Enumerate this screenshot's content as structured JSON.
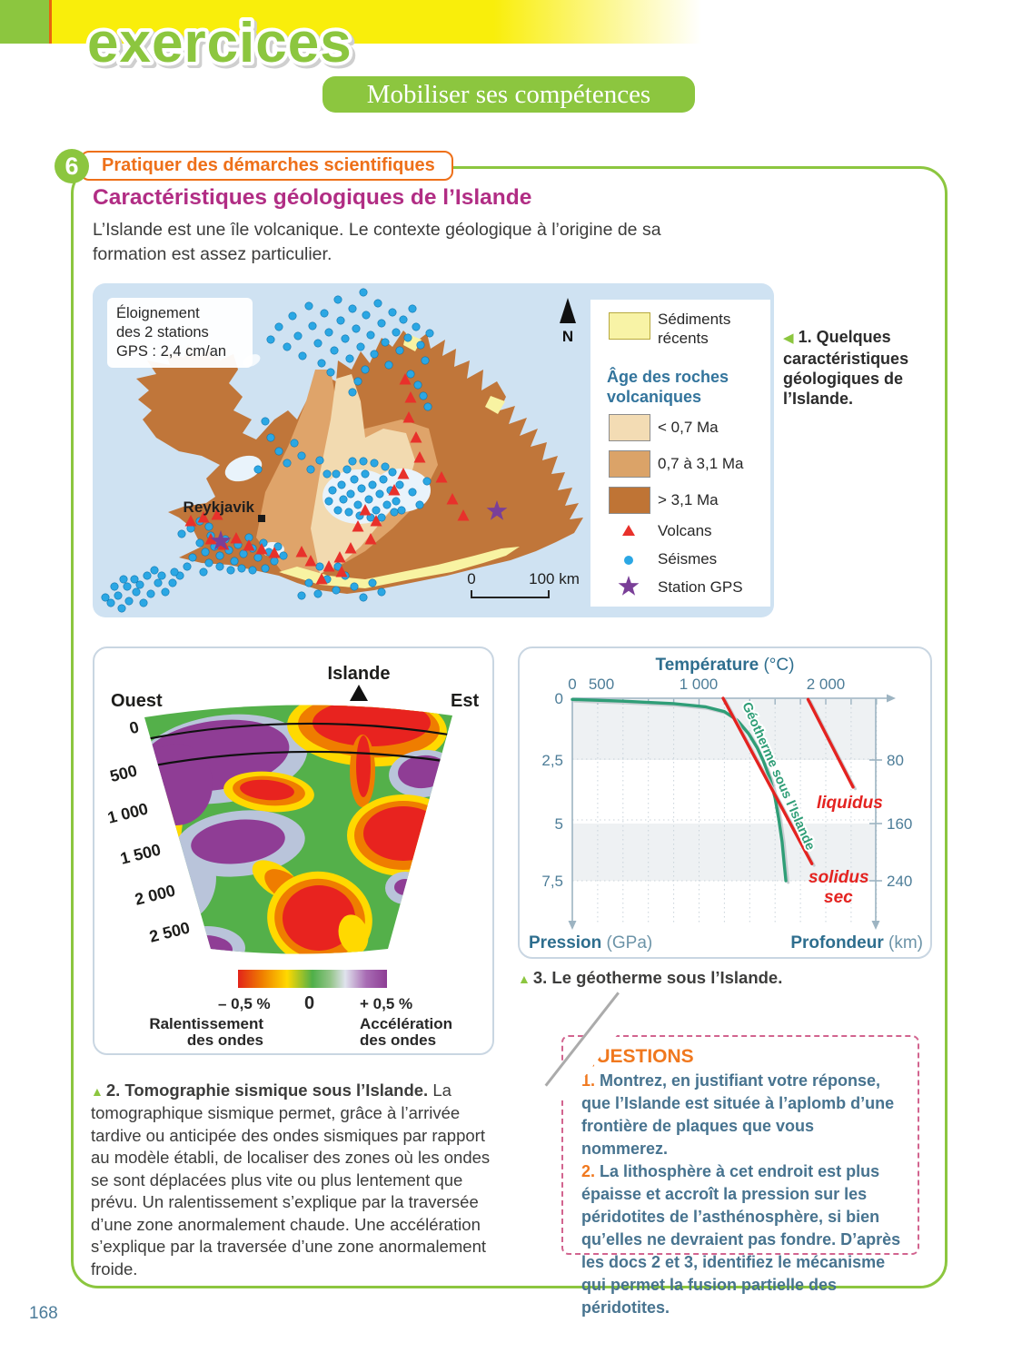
{
  "colors": {
    "brand_green": "#8cc63f",
    "brand_orange": "#ee7019",
    "title_magenta": "#b12d84",
    "question_blue": "#47738f",
    "sea": "#cfe2f2",
    "seisme": "#2ba7e4",
    "volcan": "#e8312b",
    "gps_star": "#7a3f98",
    "geotherm_green": "#2f9e77",
    "liquidus_red": "#e42320"
  },
  "page_number": "168",
  "header": {
    "brand": "exercices",
    "banner": "Mobiliser ses compétences"
  },
  "exercise": {
    "number": "6",
    "rubric": "Pratiquer des démarches scientifiques",
    "title": "Caractéristiques géologiques de l’Islande",
    "intro": "L’Islande est une île volcanique. Le contexte géologique à l’origine de sa formation est assez particulier."
  },
  "doc1": {
    "gps_note_lines": [
      "Éloignement",
      "des 2 stations",
      "GPS : 2,4 cm/an"
    ],
    "north_label": "N",
    "city": "Reykjavik",
    "scale": {
      "start": "0",
      "end": "100 km"
    },
    "legend": {
      "sediments_line1": "Sédiments",
      "sediments_line2": "récents",
      "sediments_color": "#f8f3a6",
      "age_title_line1": "Âge des roches",
      "age_title_line2": "volcaniques",
      "ages": [
        {
          "label": "< 0,7 Ma",
          "color": "#f3dcb4"
        },
        {
          "label": "0,7 à 3,1 Ma",
          "color": "#dba368"
        },
        {
          "label": "> 3,1 Ma",
          "color": "#bf7435"
        }
      ],
      "volcans": "Volcans",
      "seismes": "Séismes",
      "gps": "Station GPS"
    },
    "caption": {
      "marker": "◀",
      "text": "1. Quelques caractéristiques géologiques de l’Islande."
    },
    "map": {
      "volcans": [
        [
          344,
          106
        ],
        [
          350,
          126
        ],
        [
          348,
          148
        ],
        [
          356,
          170
        ],
        [
          360,
          192
        ],
        [
          342,
          210
        ],
        [
          332,
          228
        ],
        [
          300,
          250
        ],
        [
          312,
          262
        ],
        [
          292,
          268
        ],
        [
          306,
          282
        ],
        [
          284,
          292
        ],
        [
          272,
          302
        ],
        [
          260,
          312
        ],
        [
          274,
          318
        ],
        [
          252,
          326
        ],
        [
          240,
          306
        ],
        [
          230,
          296
        ],
        [
          130,
          282
        ],
        [
          144,
          288
        ],
        [
          158,
          281
        ],
        [
          172,
          289
        ],
        [
          186,
          293
        ],
        [
          200,
          297
        ],
        [
          108,
          262
        ],
        [
          122,
          258
        ],
        [
          137,
          255
        ],
        [
          384,
          214
        ],
        [
          396,
          238
        ],
        [
          408,
          256
        ]
      ],
      "seismes": [
        [
          196,
          62
        ],
        [
          205,
          48
        ],
        [
          214,
          70
        ],
        [
          220,
          36
        ],
        [
          226,
          58
        ],
        [
          231,
          80
        ],
        [
          238,
          25
        ],
        [
          242,
          47
        ],
        [
          248,
          66
        ],
        [
          252,
          88
        ],
        [
          255,
          33
        ],
        [
          260,
          54
        ],
        [
          266,
          74
        ],
        [
          270,
          18
        ],
        [
          273,
          41
        ],
        [
          278,
          61
        ],
        [
          283,
          83
        ],
        [
          286,
          28
        ],
        [
          290,
          50
        ],
        [
          295,
          70
        ],
        [
          298,
          10
        ],
        [
          301,
          35
        ],
        [
          306,
          57
        ],
        [
          310,
          78
        ],
        [
          314,
          22
        ],
        [
          318,
          44
        ],
        [
          322,
          65
        ],
        [
          326,
          90
        ],
        [
          330,
          32
        ],
        [
          334,
          54
        ],
        [
          338,
          74
        ],
        [
          342,
          40
        ],
        [
          347,
          60
        ],
        [
          352,
          28
        ],
        [
          356,
          48
        ],
        [
          361,
          68
        ],
        [
          366,
          85
        ],
        [
          371,
          55
        ],
        [
          300,
          95
        ],
        [
          262,
          98
        ],
        [
          350,
          100
        ],
        [
          358,
          112
        ],
        [
          364,
          124
        ],
        [
          369,
          136
        ],
        [
          292,
          108
        ],
        [
          286,
          120
        ],
        [
          196,
          170
        ],
        [
          205,
          185
        ],
        [
          214,
          198
        ],
        [
          190,
          152
        ],
        [
          222,
          176
        ],
        [
          230,
          190
        ],
        [
          240,
          205
        ],
        [
          182,
          205
        ],
        [
          250,
          195
        ],
        [
          258,
          210
        ],
        [
          268,
          210
        ],
        [
          274,
          222
        ],
        [
          280,
          205
        ],
        [
          284,
          232
        ],
        [
          288,
          216
        ],
        [
          292,
          244
        ],
        [
          296,
          226
        ],
        [
          300,
          210
        ],
        [
          304,
          238
        ],
        [
          308,
          222
        ],
        [
          312,
          250
        ],
        [
          316,
          232
        ],
        [
          320,
          216
        ],
        [
          324,
          244
        ],
        [
          328,
          228
        ],
        [
          332,
          252
        ],
        [
          276,
          238
        ],
        [
          270,
          250
        ],
        [
          282,
          252
        ],
        [
          294,
          256
        ],
        [
          306,
          258
        ],
        [
          318,
          258
        ],
        [
          286,
          196
        ],
        [
          298,
          196
        ],
        [
          310,
          198
        ],
        [
          322,
          202
        ],
        [
          334,
          240
        ],
        [
          338,
          222
        ],
        [
          264,
          228
        ],
        [
          260,
          240
        ],
        [
          330,
          208
        ],
        [
          340,
          250
        ],
        [
          352,
          230
        ],
        [
          360,
          244
        ],
        [
          368,
          218
        ],
        [
          118,
          286
        ],
        [
          124,
          296
        ],
        [
          130,
          278
        ],
        [
          134,
          290
        ],
        [
          140,
          300
        ],
        [
          146,
          282
        ],
        [
          150,
          294
        ],
        [
          156,
          306
        ],
        [
          160,
          288
        ],
        [
          166,
          298
        ],
        [
          172,
          280
        ],
        [
          176,
          292
        ],
        [
          182,
          302
        ],
        [
          188,
          286
        ],
        [
          194,
          296
        ],
        [
          200,
          306
        ],
        [
          204,
          290
        ],
        [
          210,
          300
        ],
        [
          152,
          316
        ],
        [
          140,
          312
        ],
        [
          128,
          308
        ],
        [
          164,
          314
        ],
        [
          176,
          316
        ],
        [
          190,
          314
        ],
        [
          122,
          318
        ],
        [
          110,
          302
        ],
        [
          104,
          312
        ],
        [
          96,
          322
        ],
        [
          88,
          330
        ],
        [
          80,
          340
        ],
        [
          72,
          330
        ],
        [
          64,
          342
        ],
        [
          56,
          352
        ],
        [
          48,
          340
        ],
        [
          40,
          350
        ],
        [
          32,
          358
        ],
        [
          46,
          326
        ],
        [
          38,
          334
        ],
        [
          28,
          344
        ],
        [
          20,
          352
        ],
        [
          60,
          322
        ],
        [
          68,
          316
        ],
        [
          52,
          332
        ],
        [
          24,
          334
        ],
        [
          90,
          318
        ],
        [
          76,
          322
        ],
        [
          14,
          346
        ],
        [
          34,
          326
        ],
        [
          238,
          330
        ],
        [
          248,
          342
        ],
        [
          258,
          326
        ],
        [
          268,
          338
        ],
        [
          278,
          322
        ],
        [
          288,
          334
        ],
        [
          298,
          346
        ],
        [
          308,
          330
        ],
        [
          318,
          340
        ],
        [
          250,
          312
        ],
        [
          270,
          312
        ],
        [
          230,
          344
        ],
        [
          108,
          270
        ],
        [
          118,
          262
        ],
        [
          128,
          268
        ],
        [
          98,
          276
        ]
      ],
      "gps_stations": [
        [
          141,
          284
        ],
        [
          445,
          251
        ]
      ]
    }
  },
  "doc2": {
    "west": "Ouest",
    "east": "Est",
    "top": "Islande",
    "depth_ticks": [
      "0",
      "500",
      "1 000",
      "1 500",
      "2 000",
      "2 500"
    ],
    "colorbar": {
      "left": "– 0,5 %",
      "mid": "0",
      "right": "+ 0,5 %",
      "left_sub1": "Ralentissement",
      "left_sub2": "des ondes",
      "right_sub1": "Accélération",
      "right_sub2": "des ondes"
    },
    "caption": {
      "marker": "▲",
      "bold": "2. Tomographie sismique sous l’Islande.",
      "text": " La tomographique sismique permet, grâce à l’arrivée tardive ou anticipée des ondes sismiques par rapport au modèle établi, de localiser des zones où les ondes se sont déplacées plus vite ou plus lentement que prévu. Un ralentissement s’explique par la traversée d’une zone anormalement chaude. Une accélération s’explique par la traversée d’une zone anormalement froide."
    }
  },
  "doc3": {
    "caption": {
      "marker": "▲",
      "text": "3. Le géotherme sous l’Islande."
    },
    "labels": {
      "temp_bold": "Température",
      "temp_unit": " (°C)",
      "pressure_bold": "Pression",
      "pressure_unit": " (GPa)",
      "depth_bold": "Profondeur",
      "depth_unit": " (km)",
      "liquidus": "liquidus",
      "solidus_line1": "solidus",
      "solidus_line2": "sec"
    },
    "x_ticks": [
      "0",
      "500",
      "1 000",
      "2 000"
    ],
    "p_ticks": [
      "0",
      "2,5",
      "5",
      "7,5"
    ],
    "d_ticks": [
      "80",
      "160",
      "240"
    ]
  },
  "questions": {
    "title": "QUESTIONS",
    "items": [
      {
        "num": "1.",
        "text": " Montrez, en justifiant votre réponse, que l’Islande est située à l’aplomb d’une frontière de plaques que vous nommerez."
      },
      {
        "num": "2.",
        "text": " La lithosphère à cet endroit est plus épaisse et accroît la pression sur les péridotites de l’asthénosphère, si bien qu’elles ne devraient pas fondre. D’après les docs 2 et 3, identifiez le mécanisme qui permet la fusion partielle des péridotites."
      }
    ]
  },
  "chart_data": [
    {
      "type": "line",
      "title": "Le géotherme sous l’Islande",
      "xlabel": "Température (°C)",
      "ylabel_left": "Pression (GPa)",
      "ylabel_right": "Profondeur (km)",
      "x_range": [
        0,
        2500
      ],
      "x_minor_tick_step": 200,
      "y_left_ticks": [
        0,
        2.5,
        5,
        7.5
      ],
      "y_right_ticks_km": [
        80,
        160,
        240
      ],
      "grid": "dotted",
      "series": [
        {
          "name": "Géotherme sous l’Islande",
          "color": "#2f9e77",
          "points": [
            [
              0,
              0.05
            ],
            [
              400,
              0.12
            ],
            [
              800,
              0.22
            ],
            [
              1050,
              0.35
            ],
            [
              1200,
              0.55
            ],
            [
              1300,
              0.9
            ],
            [
              1390,
              1.45
            ],
            [
              1460,
              2.05
            ],
            [
              1505,
              2.55
            ],
            [
              1560,
              3.3
            ],
            [
              1600,
              4.1
            ],
            [
              1630,
              5.0
            ],
            [
              1655,
              5.9
            ],
            [
              1672,
              6.8
            ],
            [
              1685,
              7.5
            ]
          ]
        },
        {
          "name": "solidus sec",
          "color": "#e42320",
          "points": [
            [
              1190,
              0
            ],
            [
              1890,
              6.8
            ]
          ]
        },
        {
          "name": "liquidus",
          "color": "#e42320",
          "points": [
            [
              1860,
              0.05
            ],
            [
              2215,
              3.65
            ]
          ]
        }
      ]
    },
    {
      "type": "heatmap",
      "title": "Tomographie sismique sous l’Islande",
      "section_labels": [
        "Ouest",
        "Islande",
        "Est"
      ],
      "depth_km": [
        0,
        500,
        1000,
        1500,
        2000,
        2500
      ],
      "colorbar": {
        "min_label": "– 0,5 %",
        "mid_label": "0",
        "max_label": "+ 0,5 %",
        "min_meaning": "Ralentissement des ondes",
        "max_meaning": "Accélération des ondes"
      }
    },
    {
      "type": "scatter",
      "title": "Quelques caractéristiques géologiques de l’Islande",
      "gps_displacement": "2,4 cm/an",
      "scale_km": 100,
      "legend": [
        "Sédiments récents",
        "< 0,7 Ma",
        "0,7 à 3,1 Ma",
        "> 3,1 Ma",
        "Volcans",
        "Séismes",
        "Station GPS"
      ]
    }
  ]
}
